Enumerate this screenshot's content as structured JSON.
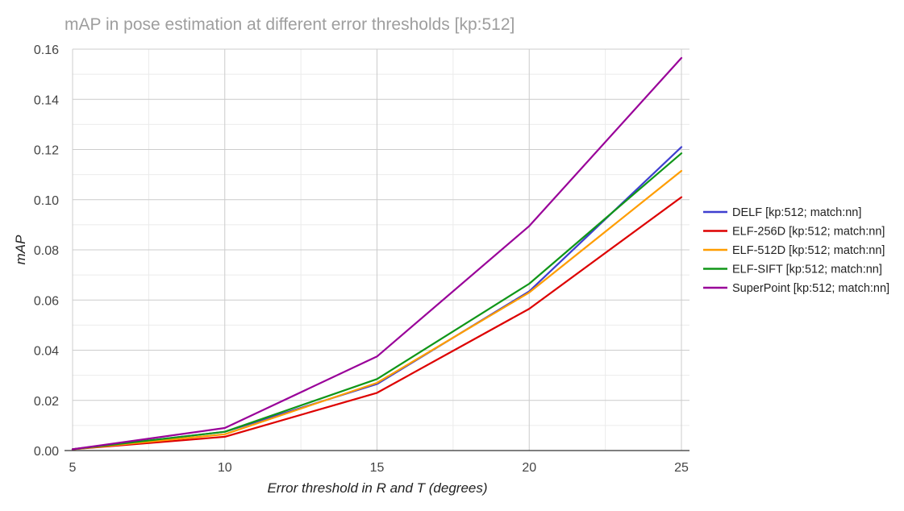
{
  "chart_data": {
    "type": "line",
    "title": "mAP in pose estimation at different error thresholds [kp:512]",
    "xlabel": "Error threshold in R and T (degrees)",
    "ylabel": "mAP",
    "x": [
      5,
      10,
      15,
      20,
      25
    ],
    "x_tick_labels": [
      "5",
      "10",
      "15",
      "20",
      "25"
    ],
    "xlim": [
      5,
      25
    ],
    "ylim": [
      0,
      0.16
    ],
    "y_ticks": [
      0,
      0.02,
      0.04,
      0.06,
      0.08,
      0.1,
      0.12,
      0.14,
      0.16
    ],
    "y_tick_labels": [
      "0.00",
      "0.02",
      "0.04",
      "0.06",
      "0.08",
      "0.10",
      "0.12",
      "0.14",
      "0.16"
    ],
    "grid": true,
    "legend_position": "right",
    "series": [
      {
        "name": "DELF [kp:512; match:nn]",
        "color": "#3f3fcf",
        "values": [
          0.0005,
          0.0075,
          0.0265,
          0.0635,
          0.121
        ]
      },
      {
        "name": "ELF-256D [kp:512; match:nn]",
        "color": "#dd0000",
        "values": [
          0.0005,
          0.0055,
          0.023,
          0.0565,
          0.101
        ]
      },
      {
        "name": "ELF-512D [kp:512; match:nn]",
        "color": "#ff9d00",
        "values": [
          0.0005,
          0.0065,
          0.027,
          0.063,
          0.1115
        ]
      },
      {
        "name": "ELF-SIFT [kp:512; match:nn]",
        "color": "#109618",
        "values": [
          0.0005,
          0.0075,
          0.0285,
          0.0665,
          0.1185
        ]
      },
      {
        "name": "SuperPoint [kp:512; match:nn]",
        "color": "#990099",
        "values": [
          0.0005,
          0.009,
          0.0375,
          0.0895,
          0.1565
        ]
      }
    ]
  }
}
